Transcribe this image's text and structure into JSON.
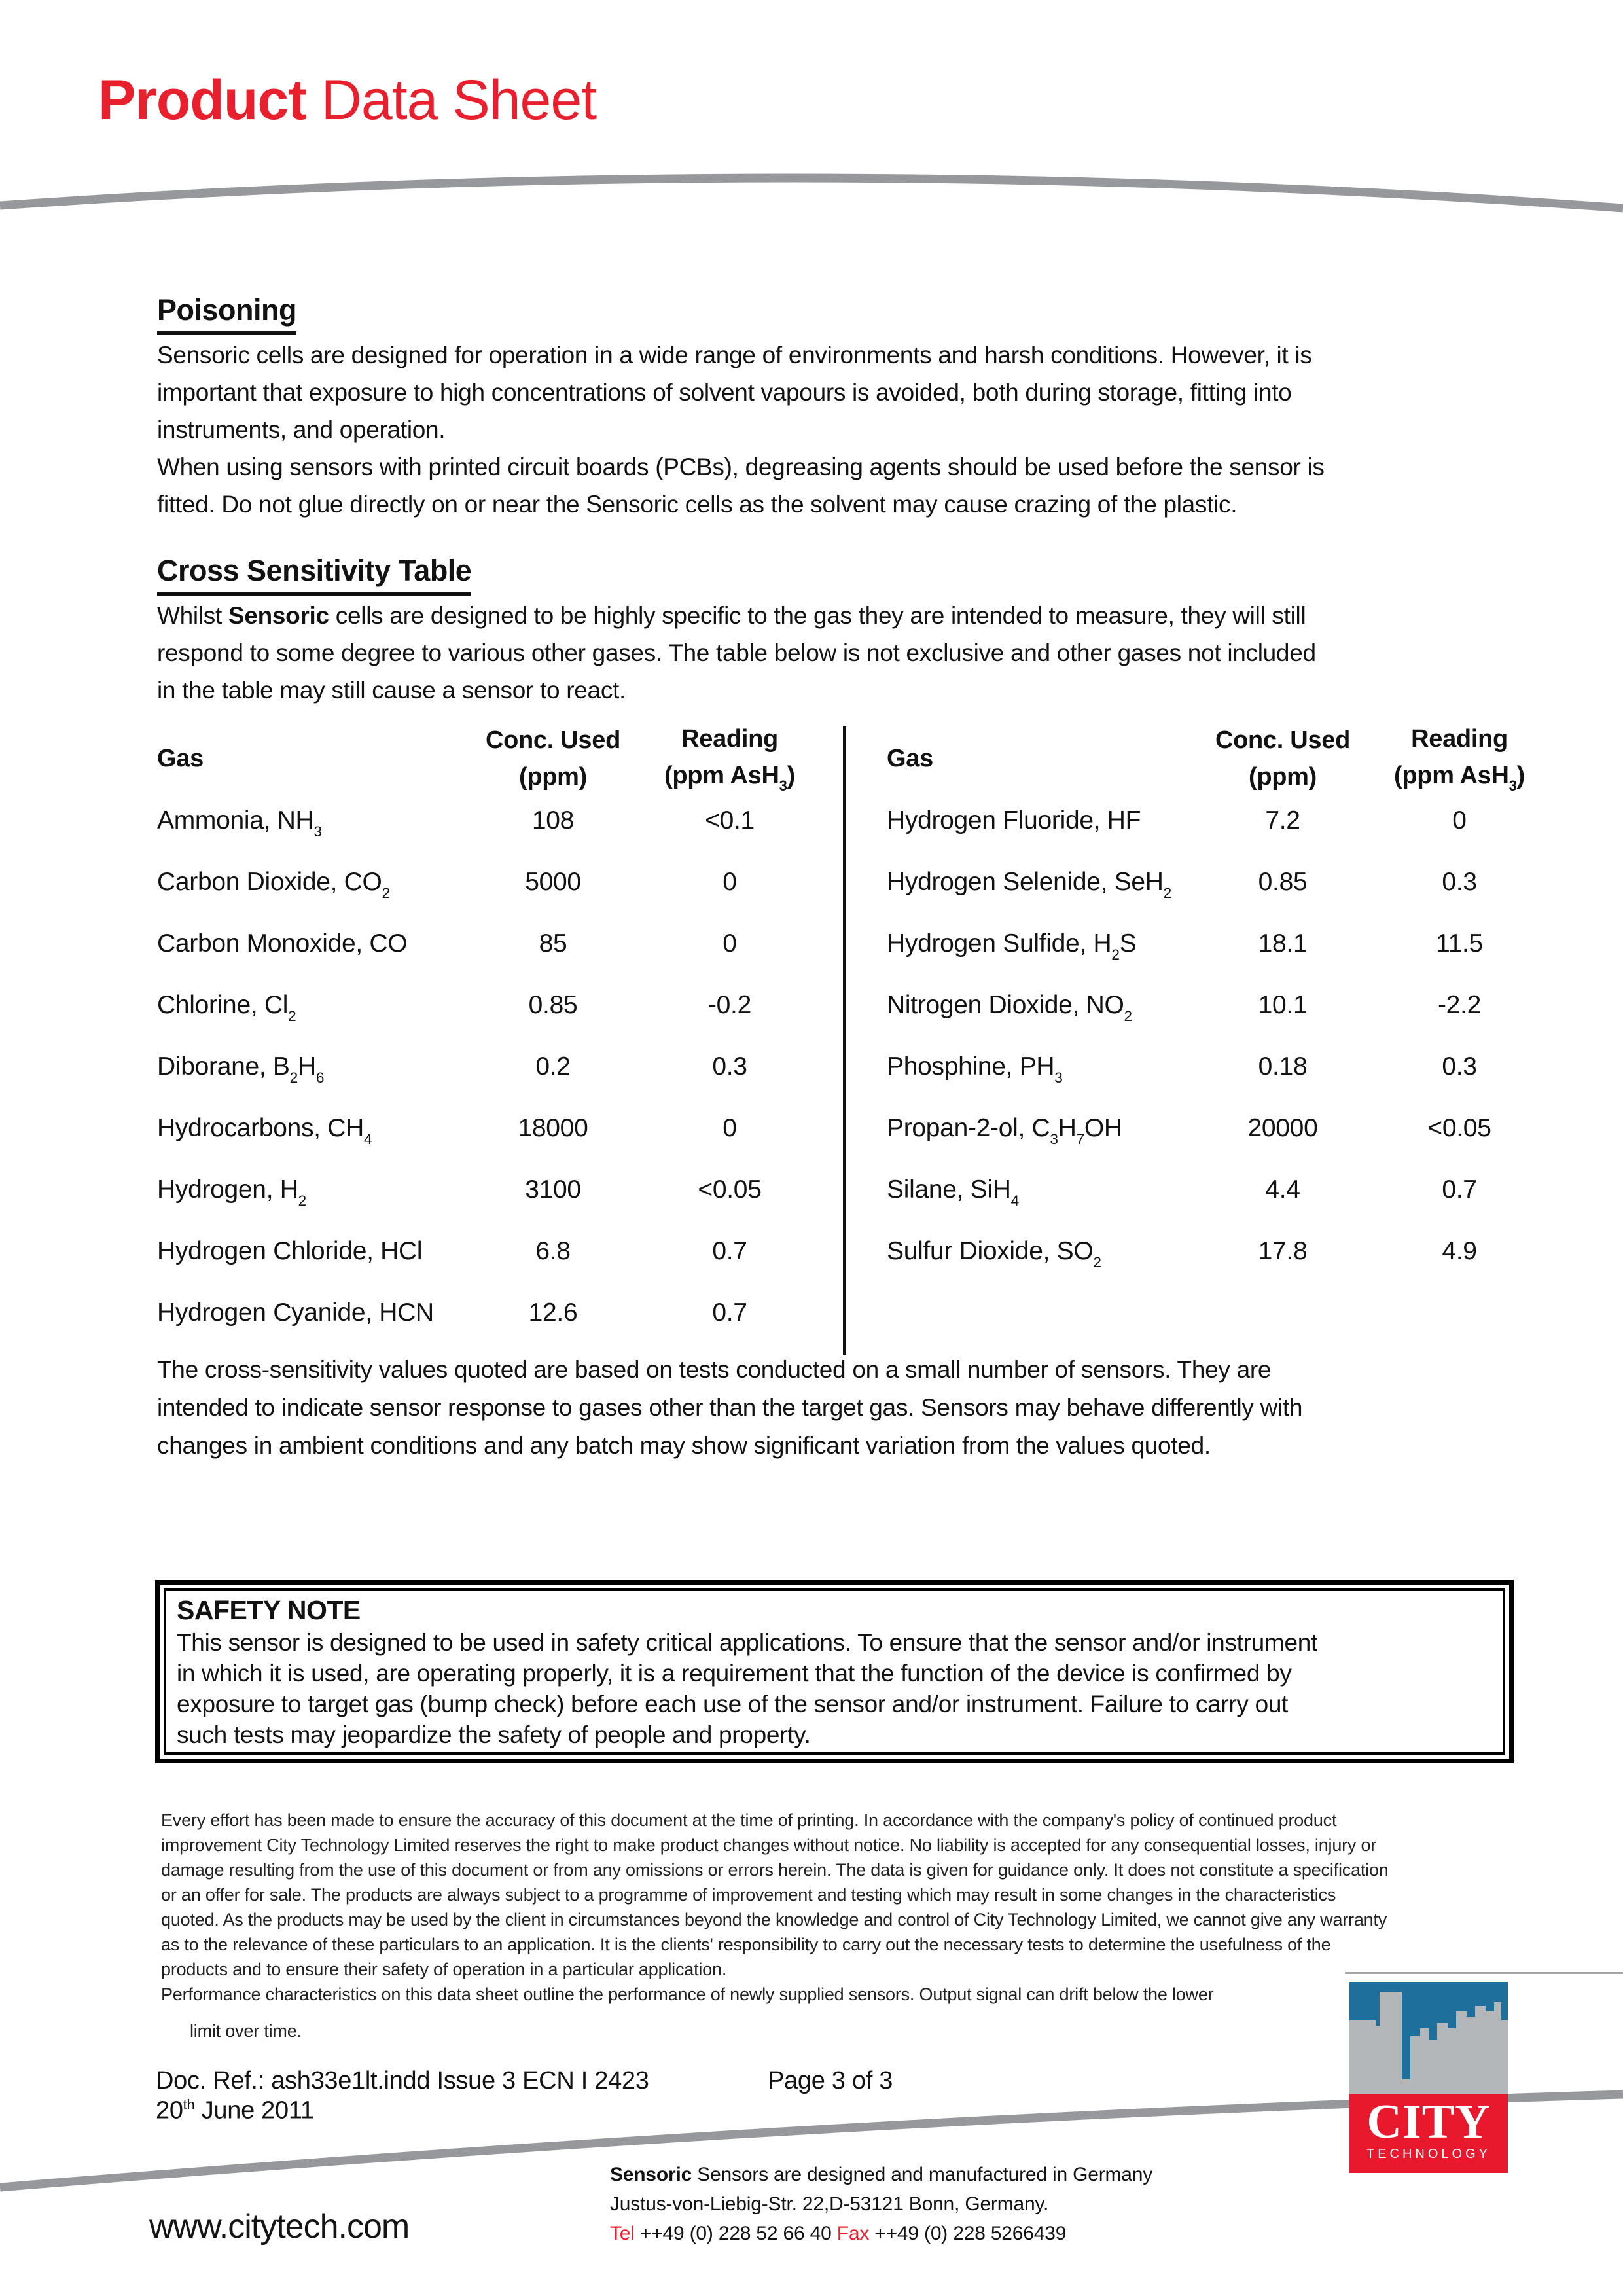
{
  "colors": {
    "accent_red": "#e8202e",
    "swoosh_gray": "#97989b",
    "logo_sky_blue": "#1f6f9c",
    "logo_building_gray": "#b4b7b9",
    "logo_red": "#e8182d"
  },
  "title": {
    "bold": "Product",
    "regular": " Data Sheet"
  },
  "poisoning": {
    "heading": "Poisoning",
    "lines": [
      "Sensoric cells are designed for operation in a wide range of environments and harsh conditions. However, it is",
      "important that exposure to high concentrations of solvent vapours is avoided, both during storage, fitting into",
      "instruments, and operation.",
      "When using sensors with printed circuit boards (PCBs), degreasing agents should be used before the sensor is",
      "fitted. Do not glue directly on or near the Sensoric cells as the solvent may cause crazing of the plastic."
    ]
  },
  "cross_sensitivity": {
    "heading": "Cross Sensitivity Table",
    "intro_lines": [
      [
        [
          "t",
          "Whilst "
        ],
        [
          "b",
          "Sensoric"
        ],
        [
          "t",
          " cells are designed to be highly specific to the gas they are intended to measure, they will still"
        ]
      ],
      "respond to some degree to various other gases. The table below is not exclusive and other gases not included",
      "in the table may still cause a sensor to react."
    ]
  },
  "table": {
    "col_gas": "Gas",
    "col_conc_line1": "Conc. Used",
    "col_conc_line2": "(ppm)",
    "col_reading_line1": "Reading",
    "col_reading_line2": [
      [
        "t",
        "(ppm AsH"
      ],
      [
        "s",
        "3"
      ],
      [
        "t",
        ")"
      ]
    ],
    "left_rows": [
      {
        "gas": [
          [
            "t",
            "Ammonia, NH"
          ],
          [
            "s",
            "3"
          ]
        ],
        "conc": "108",
        "reading": "<0.1"
      },
      {
        "gas": [
          [
            "t",
            "Carbon Dioxide, CO"
          ],
          [
            "s",
            "2"
          ]
        ],
        "conc": "5000",
        "reading": "0"
      },
      {
        "gas": [
          [
            "t",
            "Carbon Monoxide, CO"
          ]
        ],
        "conc": "85",
        "reading": "0"
      },
      {
        "gas": [
          [
            "t",
            "Chlorine, Cl"
          ],
          [
            "s",
            "2"
          ]
        ],
        "conc": "0.85",
        "reading": "-0.2"
      },
      {
        "gas": [
          [
            "t",
            "Diborane, B"
          ],
          [
            "s",
            "2"
          ],
          [
            "t",
            "H"
          ],
          [
            "s",
            "6"
          ]
        ],
        "conc": "0.2",
        "reading": "0.3"
      },
      {
        "gas": [
          [
            "t",
            "Hydrocarbons, CH"
          ],
          [
            "s",
            "4"
          ]
        ],
        "conc": "18000",
        "reading": "0"
      },
      {
        "gas": [
          [
            "t",
            "Hydrogen, H"
          ],
          [
            "s",
            "2"
          ]
        ],
        "conc": "3100",
        "reading": "<0.05"
      },
      {
        "gas": [
          [
            "t",
            "Hydrogen Chloride, HCl"
          ]
        ],
        "conc": "6.8",
        "reading": "0.7"
      },
      {
        "gas": [
          [
            "t",
            "Hydrogen Cyanide, HCN"
          ]
        ],
        "conc": "12.6",
        "reading": "0.7"
      }
    ],
    "right_rows": [
      {
        "gas": [
          [
            "t",
            "Hydrogen Fluoride, HF"
          ]
        ],
        "conc": "7.2",
        "reading": "0"
      },
      {
        "gas": [
          [
            "t",
            "Hydrogen Selenide, SeH"
          ],
          [
            "s",
            "2"
          ]
        ],
        "conc": "0.85",
        "reading": "0.3"
      },
      {
        "gas": [
          [
            "t",
            "Hydrogen Sulfide, H"
          ],
          [
            "s",
            "2"
          ],
          [
            "t",
            "S"
          ]
        ],
        "conc": "18.1",
        "reading": "11.5"
      },
      {
        "gas": [
          [
            "t",
            "Nitrogen Dioxide, NO"
          ],
          [
            "s",
            "2"
          ]
        ],
        "conc": "10.1",
        "reading": "-2.2"
      },
      {
        "gas": [
          [
            "t",
            "Phosphine, PH"
          ],
          [
            "s",
            "3"
          ]
        ],
        "conc": "0.18",
        "reading": "0.3"
      },
      {
        "gas": [
          [
            "t",
            "Propan-2-ol, C"
          ],
          [
            "s",
            "3"
          ],
          [
            "t",
            "H"
          ],
          [
            "s",
            "7"
          ],
          [
            "t",
            "OH"
          ]
        ],
        "conc": "20000",
        "reading": "<0.05"
      },
      {
        "gas": [
          [
            "t",
            "Silane, SiH"
          ],
          [
            "s",
            "4"
          ]
        ],
        "conc": "4.4",
        "reading": "0.7"
      },
      {
        "gas": [
          [
            "t",
            "Sulfur Dioxide, SO"
          ],
          [
            "s",
            "2"
          ]
        ],
        "conc": "17.8",
        "reading": "4.9"
      }
    ]
  },
  "note_paragraph_lines": [
    "The cross-sensitivity values quoted are based on tests conducted on a small number of sensors. They are",
    "intended to indicate sensor response to gases other than the target gas. Sensors may behave differently with",
    "changes in ambient conditions and any batch may show significant variation from the values quoted."
  ],
  "safety_note": {
    "heading": "SAFETY NOTE",
    "lines": [
      "This sensor is designed to be used in safety critical applications. To ensure that the sensor and/or instrument",
      "in which it is used, are operating properly, it is a requirement that the function of the device is confirmed by",
      "exposure to target gas (bump check) before each use of the sensor and/or instrument. Failure to carry out",
      "such tests may jeopardize the safety of people and property."
    ]
  },
  "fine_print_lines": [
    "Every effort has been made to ensure the accuracy of this document at the time of printing. In accordance with the company's policy of continued product",
    "improvement City Technology Limited reserves the right to make product changes without notice. No liability is accepted for any consequential losses, injury or",
    "damage resulting from the use of this document or from any omissions or errors herein. The data is given for guidance only. It does not constitute a specification",
    "or an offer for sale. The products are always subject to a programme of improvement and testing which may result in some changes in the characteristics",
    "quoted. As the products may be used by the client in circumstances beyond the knowledge and control of City Technology Limited, we cannot give any warranty",
    "as to the relevance of these particulars to an application. It is the clients' responsibility to carry out the necessary tests to determine the usefulness of the",
    "products and to ensure their safety of operation in a particular application.",
    "Performance characteristics on this data sheet outline the performance of newly supplied sensors. Output signal can drift below the lower"
  ],
  "fine_print_last": "limit over time.",
  "doc_footer": {
    "ref": "Doc. Ref.: ash33e1lt.indd Issue 3  ECN I 2423",
    "page": "Page 3 of 3",
    "date": [
      [
        "t",
        "20"
      ],
      [
        "sup",
        "th"
      ],
      [
        "t",
        " June 2011"
      ]
    ]
  },
  "logo": {
    "name": "CITY",
    "sub": "TECHNOLOGY"
  },
  "footer": {
    "website": "www.citytech.com",
    "line1": [
      [
        "b",
        "Sensoric"
      ],
      [
        "t",
        " Sensors are designed and manufactured in Germany"
      ]
    ],
    "line2": "Justus-von-Liebig-Str. 22,D-53121 Bonn, Germany.",
    "line3": [
      [
        "red",
        "Tel"
      ],
      [
        "t",
        " ++49 (0) 228 52 66 40  "
      ],
      [
        "red",
        "Fax"
      ],
      [
        "t",
        " ++49 (0) 228 5266439"
      ]
    ]
  }
}
